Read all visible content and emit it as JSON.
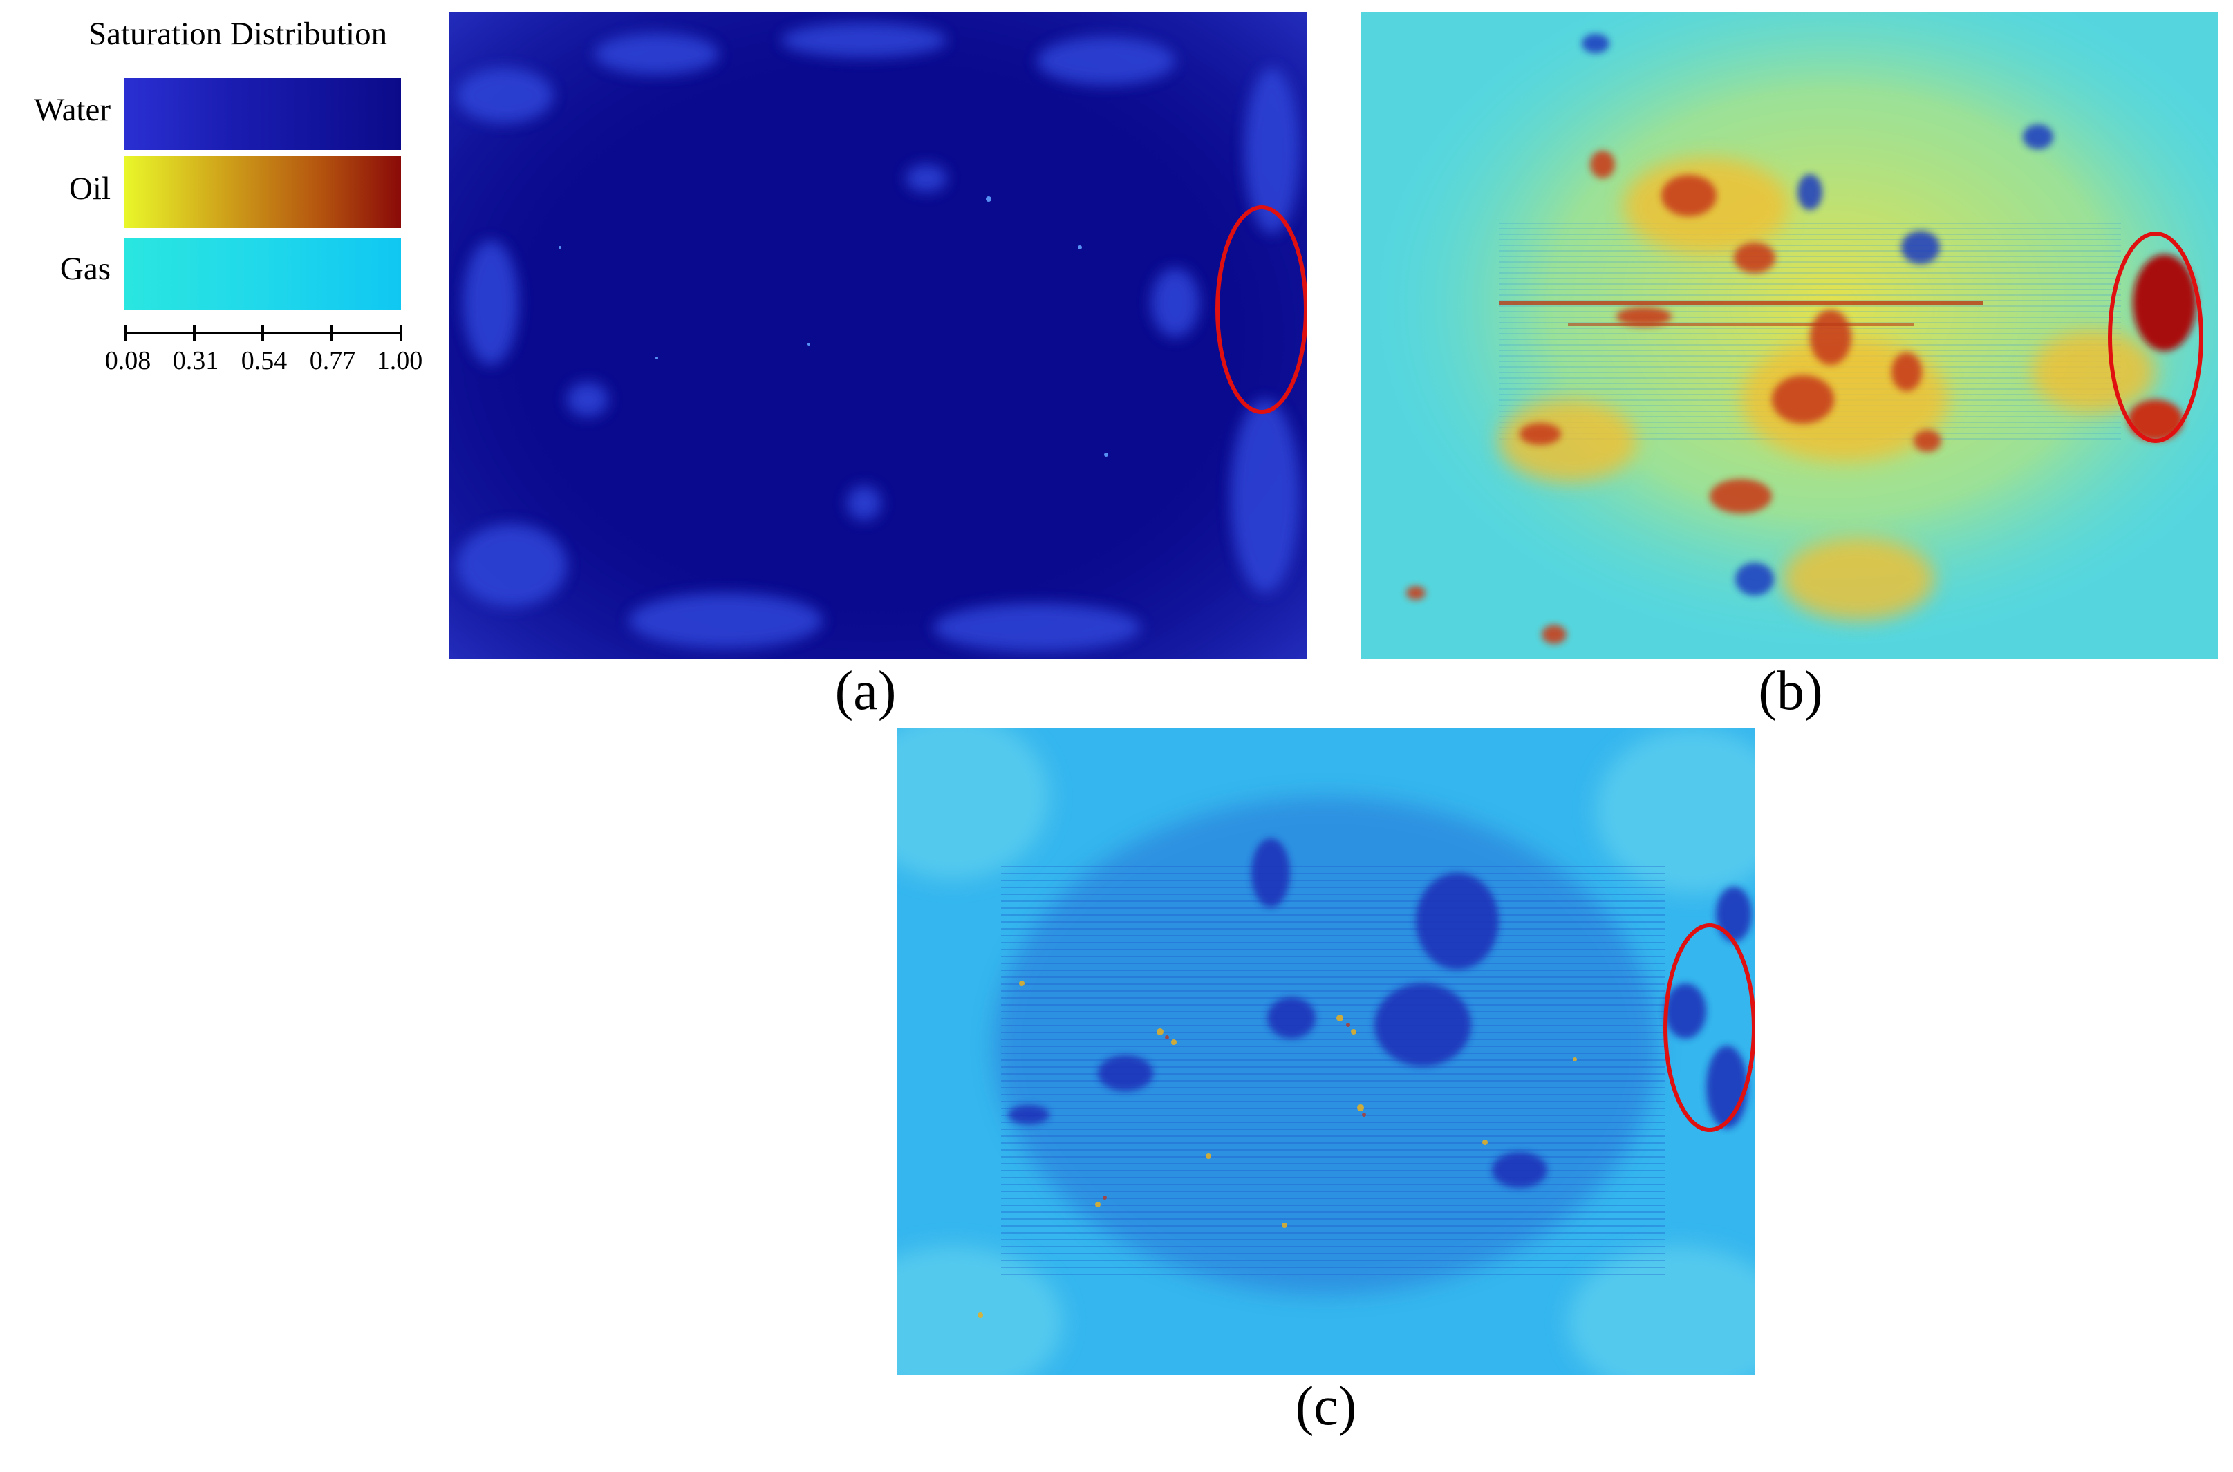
{
  "legend": {
    "title": "Saturation Distribution",
    "rows": [
      {
        "label": "Water",
        "colors": [
          "#2a2fd2",
          "#0b0b8a"
        ]
      },
      {
        "label": "Oil",
        "colors": [
          "#e9f72a",
          "#8a0a08"
        ]
      },
      {
        "label": "Gas",
        "colors": [
          "#2ae6e0",
          "#10c7f2"
        ]
      }
    ],
    "ticks": [
      "0.08",
      "0.31",
      "0.54",
      "0.77",
      "1.00"
    ]
  },
  "panels": [
    {
      "caption": "(a)",
      "fluid": "Water",
      "base_color": "#0a0a8e"
    },
    {
      "caption": "(b)",
      "fluid": "Oil",
      "base_color": "#6fe0c8"
    },
    {
      "caption": "(c)",
      "fluid": "Gas",
      "base_color": "#35b6ee"
    }
  ],
  "highlight_color": "#e01010"
}
